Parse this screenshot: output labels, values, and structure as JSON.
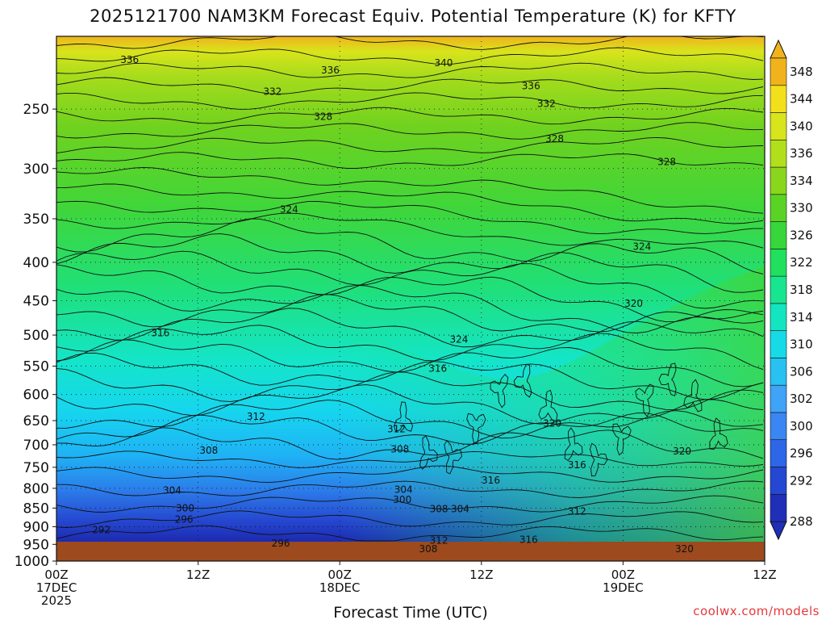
{
  "title": "2025121700 NAM3KM Forecast Equiv. Potential Temperature (K) for KFTY",
  "watermark": "coolwx.com/models",
  "chart_data": {
    "type": "heatmap",
    "title": "2025121700 NAM3KM Forecast Equiv. Potential Temperature (K) for KFTY",
    "xlabel": "Forecast Time (UTC)",
    "ylabel": "",
    "x_range_hours": [
      0,
      60
    ],
    "x_ticks": [
      {
        "hour": 0,
        "lines": [
          "00Z",
          "17DEC",
          "2025"
        ]
      },
      {
        "hour": 12,
        "lines": [
          "12Z"
        ]
      },
      {
        "hour": 24,
        "lines": [
          "00Z",
          "18DEC"
        ]
      },
      {
        "hour": 36,
        "lines": [
          "12Z"
        ]
      },
      {
        "hour": 48,
        "lines": [
          "00Z",
          "19DEC"
        ]
      },
      {
        "hour": 60,
        "lines": [
          "12Z"
        ]
      }
    ],
    "y_ticks": [
      250,
      300,
      350,
      400,
      450,
      500,
      550,
      600,
      650,
      700,
      750,
      800,
      850,
      900,
      950,
      1000
    ],
    "y_range_hpa": [
      200,
      1000
    ],
    "colorbar": {
      "levels": [
        288,
        292,
        296,
        300,
        302,
        306,
        310,
        314,
        318,
        322,
        326,
        330,
        334,
        336,
        340,
        344,
        348
      ],
      "colors": [
        "#1f2fb8",
        "#2548d2",
        "#2d66e6",
        "#3a86f2",
        "#3fa3f7",
        "#28c1f2",
        "#16dbe6",
        "#13e5c0",
        "#18e58f",
        "#20e05e",
        "#37d63a",
        "#5ad424",
        "#8ad61c",
        "#b2df1c",
        "#d8e41c",
        "#f2e01c",
        "#f0b31c"
      ]
    },
    "contour_labels": [
      {
        "text": "336",
        "hour": 6.2,
        "p": 215
      },
      {
        "text": "336",
        "hour": 23.2,
        "p": 222
      },
      {
        "text": "340",
        "hour": 32.8,
        "p": 217
      },
      {
        "text": "336",
        "hour": 40.2,
        "p": 233
      },
      {
        "text": "332",
        "hour": 18.3,
        "p": 237
      },
      {
        "text": "332",
        "hour": 41.5,
        "p": 246
      },
      {
        "text": "328",
        "hour": 22.6,
        "p": 256
      },
      {
        "text": "328",
        "hour": 42.2,
        "p": 274
      },
      {
        "text": "328",
        "hour": 51.7,
        "p": 294
      },
      {
        "text": "324",
        "hour": 19.7,
        "p": 340
      },
      {
        "text": "324",
        "hour": 49.6,
        "p": 381
      },
      {
        "text": "320",
        "hour": 48.9,
        "p": 454
      },
      {
        "text": "316",
        "hour": 8.8,
        "p": 497
      },
      {
        "text": "324",
        "hour": 34.1,
        "p": 507
      },
      {
        "text": "316",
        "hour": 32.3,
        "p": 554
      },
      {
        "text": "320",
        "hour": 42.0,
        "p": 656
      },
      {
        "text": "312",
        "hour": 16.9,
        "p": 642
      },
      {
        "text": "312",
        "hour": 28.8,
        "p": 667
      },
      {
        "text": "308",
        "hour": 12.9,
        "p": 712
      },
      {
        "text": "308",
        "hour": 29.1,
        "p": 710
      },
      {
        "text": "320",
        "hour": 53.0,
        "p": 714
      },
      {
        "text": "316",
        "hour": 44.1,
        "p": 745
      },
      {
        "text": "316",
        "hour": 36.8,
        "p": 781
      },
      {
        "text": "304",
        "hour": 9.8,
        "p": 805
      },
      {
        "text": "304",
        "hour": 29.4,
        "p": 803
      },
      {
        "text": "300",
        "hour": 29.3,
        "p": 828
      },
      {
        "text": "300",
        "hour": 10.9,
        "p": 850
      },
      {
        "text": "308",
        "hour": 32.4,
        "p": 852
      },
      {
        "text": "304",
        "hour": 34.2,
        "p": 852
      },
      {
        "text": "312",
        "hour": 44.1,
        "p": 859
      },
      {
        "text": "296",
        "hour": 10.8,
        "p": 880
      },
      {
        "text": "292",
        "hour": 3.8,
        "p": 909
      },
      {
        "text": "312",
        "hour": 32.4,
        "p": 939
      },
      {
        "text": "296",
        "hour": 19.0,
        "p": 947
      },
      {
        "text": "316",
        "hour": 40.0,
        "p": 937
      },
      {
        "text": "308",
        "hour": 31.5,
        "p": 964
      },
      {
        "text": "320",
        "hour": 53.2,
        "p": 963
      }
    ],
    "grid": true,
    "ground_color": "#9c4a1e"
  }
}
